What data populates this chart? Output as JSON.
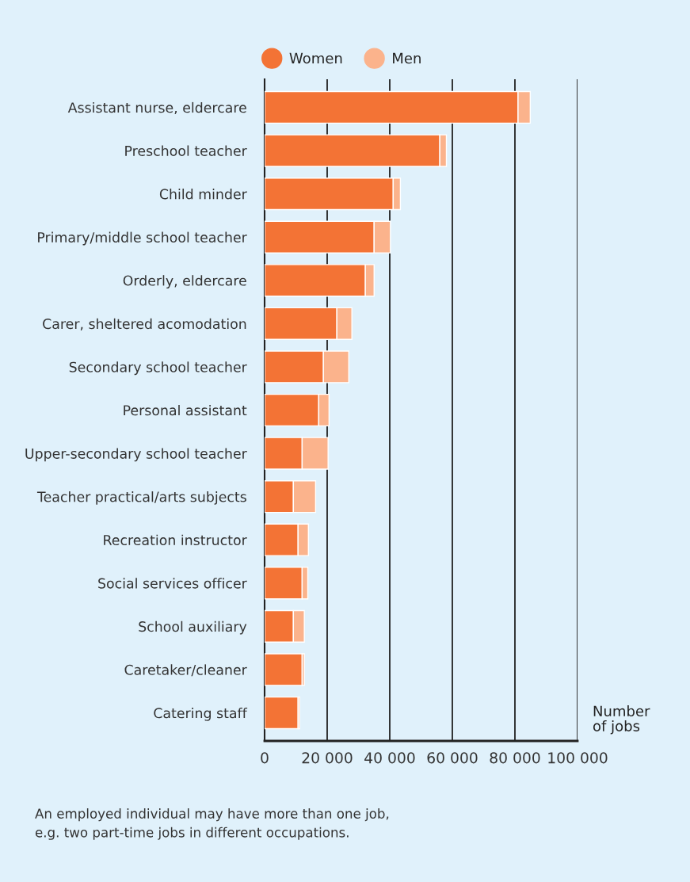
{
  "chart_data": {
    "type": "bar",
    "orientation": "horizontal",
    "stacked": true,
    "categories": [
      "Assistant nurse, eldercare",
      "Preschool teacher",
      "Child minder",
      "Primary/middle school teacher",
      "Orderly, eldercare",
      "Carer, sheltered acomodation",
      "Secondary school teacher",
      "Personal assistant",
      "Upper-secondary school teacher",
      "Teacher practical/arts subjects",
      "Recreation instructor",
      "Social services officer",
      "School auxiliary",
      "Caretaker/cleaner",
      "Catering staff"
    ],
    "series": [
      {
        "name": "Women",
        "color": "#f37335",
        "values": [
          81000,
          56000,
          41100,
          35000,
          32200,
          23100,
          18800,
          17300,
          12000,
          9200,
          10700,
          12000,
          9200,
          12000,
          10700
        ]
      },
      {
        "name": "Men",
        "color": "#fbb38c",
        "values": [
          3900,
          2100,
          2300,
          5200,
          2800,
          4800,
          8100,
          3300,
          8300,
          7100,
          3300,
          1800,
          3500,
          700,
          500
        ]
      }
    ],
    "xlabel": "Number\nof jobs",
    "xlim": [
      0,
      100000
    ],
    "xticks": [
      0,
      {
        "value": 20000,
        "label": "20 000"
      },
      {
        "value": 40000,
        "label": "40 000"
      },
      {
        "value": 60000,
        "label": "60 000"
      },
      {
        "value": 80000,
        "label": "80 000"
      },
      {
        "value": 100000,
        "label": "100 000"
      }
    ],
    "grid": "x",
    "legend": "top",
    "marker": "circle",
    "annotations": [
      "An employed individual may have more than one job,\ne.g. two part-time jobs in different occupations."
    ]
  }
}
